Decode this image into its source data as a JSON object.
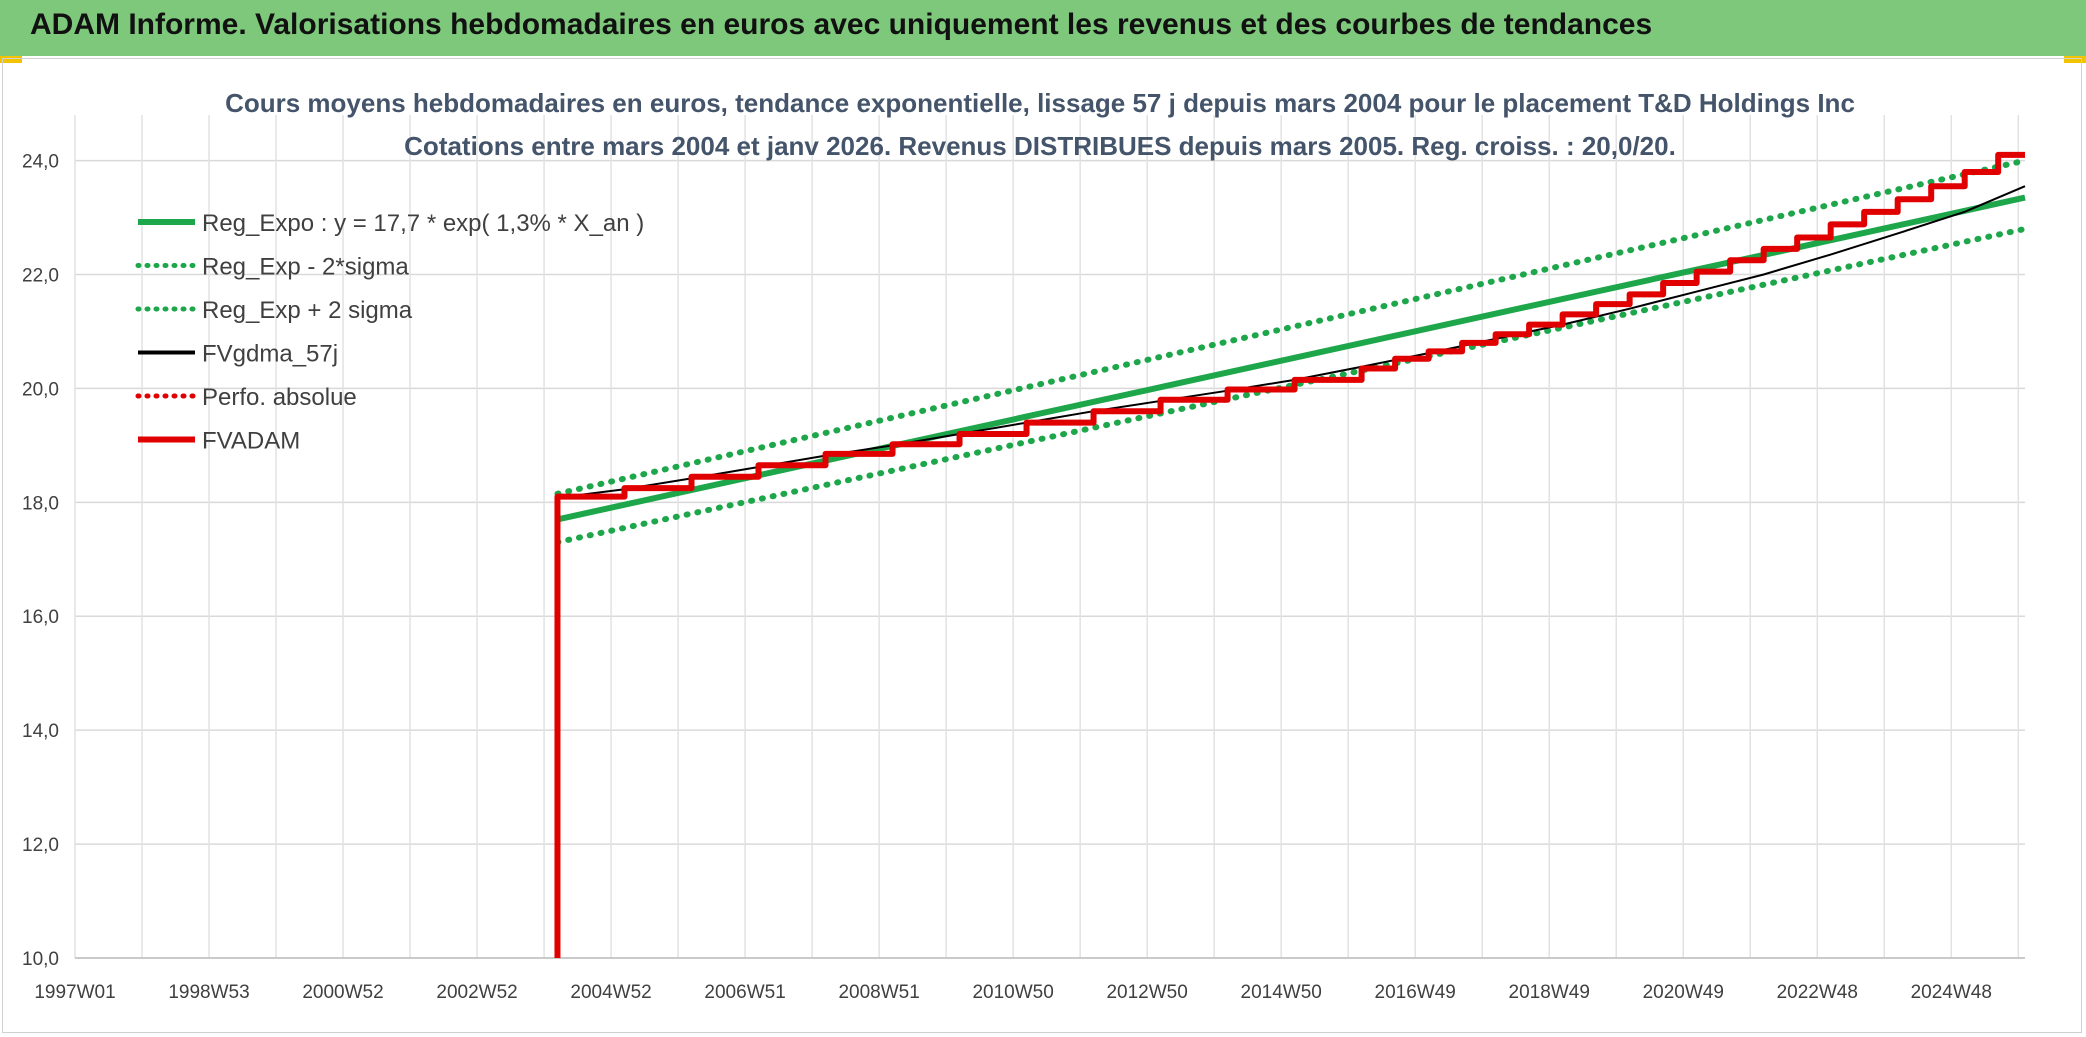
{
  "header": {
    "title": "ADAM Informe. Valorisations hebdomadaires en euros avec uniquement les revenus et des courbes de tendances"
  },
  "chart_data": {
    "type": "line",
    "title_lines": [
      "Cours moyens hebdomadaires en euros, tendance exponentielle, lissage 57 j depuis mars 2004 pour le placement T&D Holdings Inc",
      "Cotations entre mars 2004 et janv 2026. Revenus DISTRIBUES depuis mars 2005. Reg. croiss. : 20,0/20."
    ],
    "xlabel": "",
    "ylabel": "",
    "x_tick_labels": [
      "1997W01",
      "1998W53",
      "2000W52",
      "2002W52",
      "2004W52",
      "2006W51",
      "2008W51",
      "2010W50",
      "2012W50",
      "2014W50",
      "2016W49",
      "2018W49",
      "2020W49",
      "2022W48",
      "2024W48"
    ],
    "xlim": [
      1997.0,
      2026.1
    ],
    "ylim": [
      10,
      24.8
    ],
    "y_ticks": [
      10,
      12,
      14,
      16,
      18,
      20,
      22,
      24
    ],
    "y_tick_labels": [
      "10,0",
      "12,0",
      "14,0",
      "16,0",
      "18,0",
      "20,0",
      "22,0",
      "24,0"
    ],
    "grid": true,
    "legend_placement": "top-left",
    "series": [
      {
        "name": "Reg_Expo : y = 17,7 * exp( 1,3% *  X_an )",
        "color": "#1ea64b",
        "style": "solid",
        "x": [
          2004.2,
          2026.1
        ],
        "y": [
          17.7,
          23.35
        ]
      },
      {
        "name": "Reg_Exp - 2*sigma",
        "color": "#1ea64b",
        "style": "dotted",
        "x": [
          2004.2,
          2026.1
        ],
        "y": [
          17.3,
          22.8
        ]
      },
      {
        "name": "Reg_Exp + 2 sigma",
        "color": "#1ea64b",
        "style": "dotted",
        "x": [
          2004.2,
          2026.1
        ],
        "y": [
          18.15,
          24.0
        ]
      },
      {
        "name": "FVgdma_57j",
        "color": "#000000",
        "style": "solid",
        "x": [
          2004.2,
          2005.2,
          2006.2,
          2007.2,
          2008.2,
          2009.2,
          2010.2,
          2011.2,
          2012.2,
          2013.2,
          2014.2,
          2015.2,
          2016.2,
          2017.2,
          2018.2,
          2019.2,
          2020.2,
          2021.2,
          2022.2,
          2023.2,
          2024.2,
          2025.2,
          2026.1
        ],
        "y": [
          18.08,
          18.23,
          18.42,
          18.62,
          18.82,
          19.0,
          19.2,
          19.4,
          19.6,
          19.78,
          19.96,
          20.15,
          20.38,
          20.62,
          20.87,
          21.12,
          21.4,
          21.7,
          22.0,
          22.35,
          22.72,
          23.1,
          23.55
        ]
      },
      {
        "name": "Perfo. absolue",
        "color": "#e00000",
        "style": "dotted",
        "x": [],
        "y": []
      },
      {
        "name": "FVADAM",
        "color": "#e00000",
        "style": "step",
        "x": [
          2004.2,
          2004.2,
          2005.2,
          2006.2,
          2007.2,
          2008.2,
          2009.2,
          2010.2,
          2011.2,
          2012.2,
          2013.2,
          2014.2,
          2015.2,
          2016.2,
          2016.7,
          2017.2,
          2017.7,
          2018.2,
          2018.7,
          2019.2,
          2019.7,
          2020.2,
          2020.7,
          2021.2,
          2021.7,
          2022.2,
          2022.7,
          2023.2,
          2023.7,
          2024.2,
          2024.7,
          2025.2,
          2025.7,
          2026.1
        ],
        "y": [
          10.0,
          18.1,
          18.25,
          18.45,
          18.65,
          18.85,
          19.02,
          19.2,
          19.4,
          19.6,
          19.8,
          19.98,
          20.15,
          20.35,
          20.52,
          20.65,
          20.8,
          20.95,
          21.12,
          21.3,
          21.48,
          21.65,
          21.85,
          22.05,
          22.25,
          22.45,
          22.65,
          22.88,
          23.1,
          23.32,
          23.55,
          23.8,
          24.1,
          24.1
        ]
      }
    ]
  }
}
